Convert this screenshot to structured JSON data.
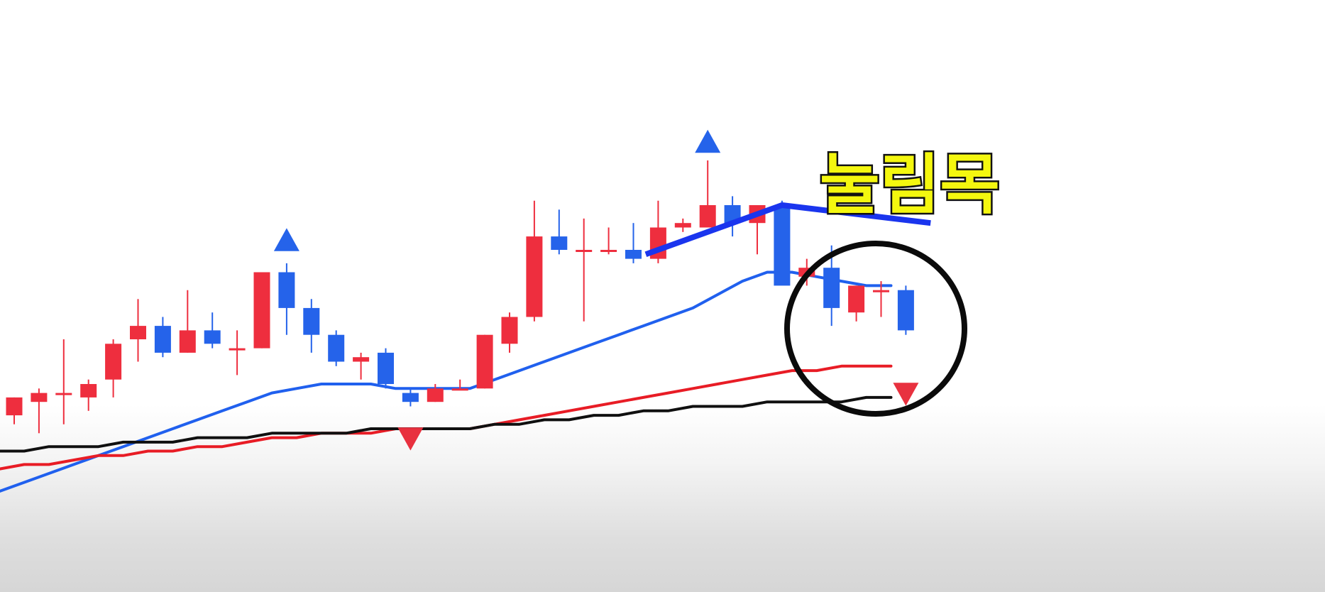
{
  "chart_data": {
    "type": "candlestick",
    "title": "",
    "xlabel": "",
    "ylabel": "",
    "ylim": [
      0,
      100
    ],
    "grid": false,
    "legend": "none",
    "colors": {
      "up": "#ee2e3e",
      "down": "#2563ea",
      "ma_short": "#2060ee",
      "ma_mid": "#e81c25",
      "ma_long": "#101010",
      "pullback_line": "#1a35ee",
      "annotation_text": "#f4f70f"
    },
    "candles": [
      {
        "o": 23,
        "h": 27,
        "l": 21,
        "c": 27
      },
      {
        "o": 26,
        "h": 29,
        "l": 19,
        "c": 28
      },
      {
        "o": 28,
        "h": 40,
        "l": 21,
        "c": 28
      },
      {
        "o": 27,
        "h": 31,
        "l": 24,
        "c": 30
      },
      {
        "o": 31,
        "h": 40,
        "l": 27,
        "c": 39
      },
      {
        "o": 40,
        "h": 49,
        "l": 35,
        "c": 43
      },
      {
        "o": 43,
        "h": 45,
        "l": 36,
        "c": 37
      },
      {
        "o": 37,
        "h": 51,
        "l": 37,
        "c": 42
      },
      {
        "o": 42,
        "h": 46,
        "l": 38,
        "c": 39
      },
      {
        "o": 38,
        "h": 42,
        "l": 32,
        "c": 38
      },
      {
        "o": 38,
        "h": 55,
        "l": 38,
        "c": 55
      },
      {
        "o": 55,
        "h": 57,
        "l": 41,
        "c": 47
      },
      {
        "o": 47,
        "h": 49,
        "l": 37,
        "c": 41
      },
      {
        "o": 41,
        "h": 42,
        "l": 34,
        "c": 35
      },
      {
        "o": 35,
        "h": 37,
        "l": 31,
        "c": 36
      },
      {
        "o": 37,
        "h": 38,
        "l": 29,
        "c": 30
      },
      {
        "o": 28,
        "h": 29,
        "l": 25,
        "c": 26
      },
      {
        "o": 26,
        "h": 30,
        "l": 26,
        "c": 29
      },
      {
        "o": 29,
        "h": 31,
        "l": 29,
        "c": 29
      },
      {
        "o": 29,
        "h": 41,
        "l": 29,
        "c": 41
      },
      {
        "o": 39,
        "h": 46,
        "l": 37,
        "c": 45
      },
      {
        "o": 45,
        "h": 71,
        "l": 44,
        "c": 63
      },
      {
        "o": 63,
        "h": 69,
        "l": 59,
        "c": 60
      },
      {
        "o": 60,
        "h": 67,
        "l": 44,
        "c": 60
      },
      {
        "o": 60,
        "h": 65,
        "l": 59,
        "c": 60
      },
      {
        "o": 60,
        "h": 66,
        "l": 57,
        "c": 58
      },
      {
        "o": 58,
        "h": 71,
        "l": 57,
        "c": 65
      },
      {
        "o": 65,
        "h": 67,
        "l": 64,
        "c": 66
      },
      {
        "o": 65,
        "h": 80,
        "l": 65,
        "c": 70
      },
      {
        "o": 70,
        "h": 72,
        "l": 63,
        "c": 66
      },
      {
        "o": 66,
        "h": 70,
        "l": 59,
        "c": 70
      },
      {
        "o": 70,
        "h": 71,
        "l": 53,
        "c": 52
      },
      {
        "o": 54,
        "h": 58,
        "l": 52,
        "c": 56
      },
      {
        "o": 56,
        "h": 61,
        "l": 43,
        "c": 47
      },
      {
        "o": 46,
        "h": 52,
        "l": 44,
        "c": 52
      },
      {
        "o": 51,
        "h": 53,
        "l": 45,
        "c": 51
      },
      {
        "o": 51,
        "h": 52,
        "l": 41,
        "c": 42
      }
    ],
    "series": [
      {
        "type": "line",
        "role": "ma_short",
        "values": [
          6,
          8,
          10,
          12,
          14,
          16,
          18,
          20,
          22,
          24,
          26,
          28,
          29,
          30,
          30,
          30,
          29,
          29,
          29,
          29,
          31,
          33,
          35,
          37,
          39,
          41,
          43,
          45,
          47,
          50,
          53,
          55,
          55,
          54,
          53,
          52,
          52
        ]
      },
      {
        "type": "line",
        "role": "ma_mid",
        "values": [
          11,
          12,
          12,
          13,
          14,
          14,
          15,
          15,
          16,
          16,
          17,
          18,
          18,
          19,
          19,
          19,
          20,
          20,
          20,
          20,
          21,
          22,
          23,
          24,
          25,
          26,
          27,
          28,
          29,
          30,
          31,
          32,
          33,
          33,
          34,
          34,
          34
        ]
      },
      {
        "type": "line",
        "role": "ma_long",
        "values": [
          15,
          15,
          16,
          16,
          16,
          17,
          17,
          17,
          18,
          18,
          18,
          19,
          19,
          19,
          19,
          20,
          20,
          20,
          20,
          20,
          21,
          21,
          22,
          22,
          23,
          23,
          24,
          24,
          25,
          25,
          25,
          26,
          26,
          26,
          26,
          27,
          27
        ]
      }
    ],
    "pullback_line": {
      "from": {
        "index": 25.5,
        "value": 59
      },
      "to": {
        "index": 31,
        "value": 70
      },
      "then": {
        "index": 37,
        "value": 66
      }
    },
    "markers": [
      {
        "index": 11,
        "direction": "up",
        "value": 62,
        "color": "#2563ea"
      },
      {
        "index": 28,
        "direction": "up",
        "value": 84,
        "color": "#2563ea"
      },
      {
        "index": 16,
        "direction": "down",
        "value": 18,
        "color": "#e8313f"
      },
      {
        "index": 36,
        "direction": "down",
        "value": 28,
        "color": "#e8313f"
      }
    ],
    "annotation": {
      "text": "눌림목",
      "highlight_from_index": 32,
      "highlight_to_index": 37
    }
  }
}
